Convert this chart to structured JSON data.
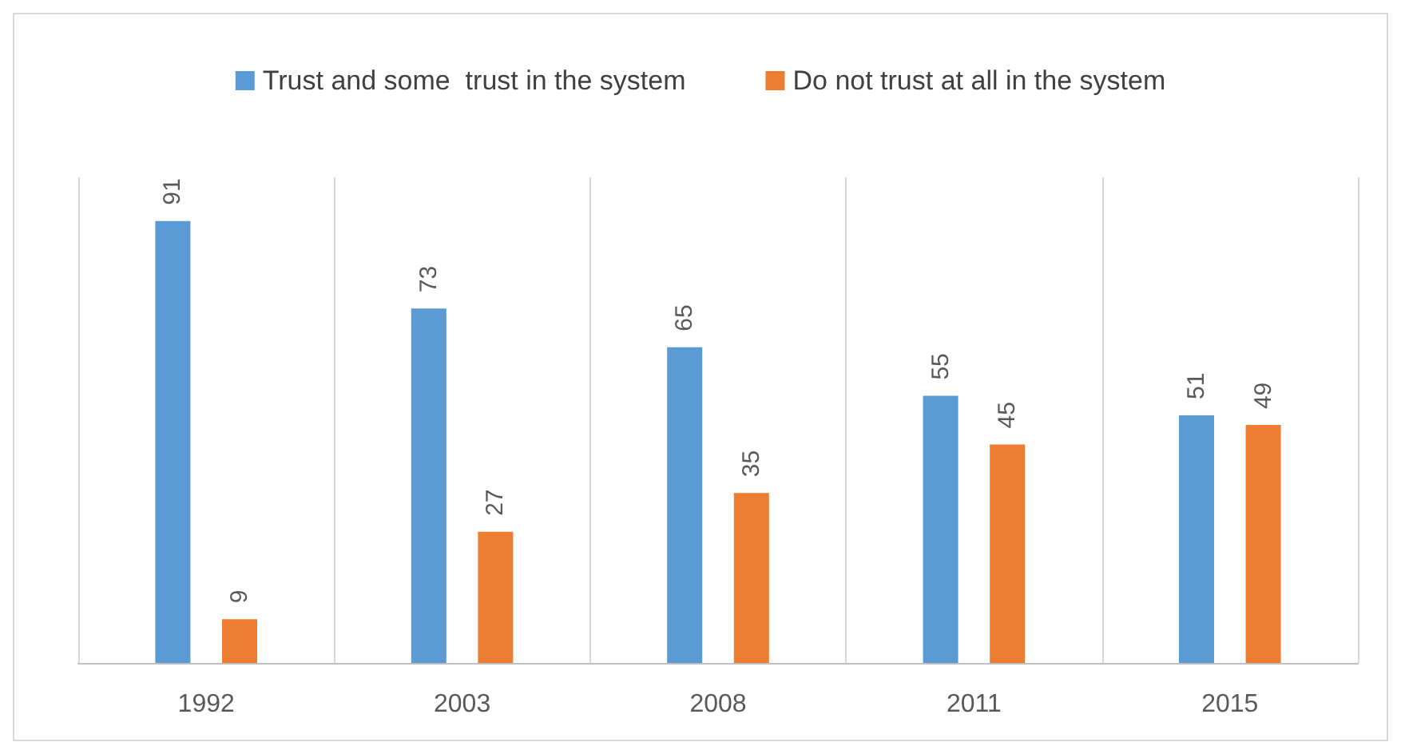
{
  "chart_data": {
    "type": "bar",
    "categories": [
      "1992",
      "2003",
      "2008",
      "2011",
      "2015"
    ],
    "series": [
      {
        "name": "Trust and some  trust in the system",
        "color": "#5b9bd5",
        "values": [
          91,
          73,
          65,
          55,
          51
        ]
      },
      {
        "name": "Do not trust at all in the system",
        "color": "#ed7d31",
        "values": [
          9,
          27,
          35,
          45,
          49
        ]
      }
    ],
    "data_labels": true,
    "grid": "x",
    "legend": "top"
  }
}
